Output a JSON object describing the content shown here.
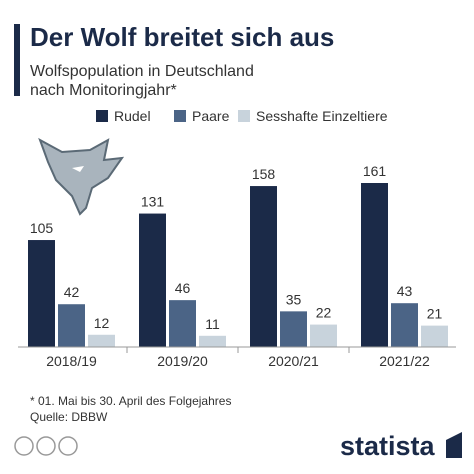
{
  "chart_data": {
    "type": "grouped-bar",
    "title": "Der Wolf breitet sich aus",
    "subtitle": [
      "Wolfspopulation in Deutschland",
      "nach Monitoringjahr*"
    ],
    "categories": [
      "2018/19",
      "2019/20",
      "2020/21",
      "2021/22"
    ],
    "series": [
      {
        "name": "Rudel",
        "color": "#1b2a48",
        "values": [
          105,
          131,
          158,
          161
        ]
      },
      {
        "name": "Paare",
        "color": "#4b6486",
        "values": [
          42,
          46,
          35,
          43
        ]
      },
      {
        "name": "Sesshafte Einzeltiere",
        "color": "#c8d3dc",
        "values": [
          12,
          11,
          22,
          21
        ]
      }
    ],
    "footnote": "* 01. Mai bis 30. April des Folgejahres",
    "source": "Quelle: DBBW",
    "brand": "statista"
  }
}
